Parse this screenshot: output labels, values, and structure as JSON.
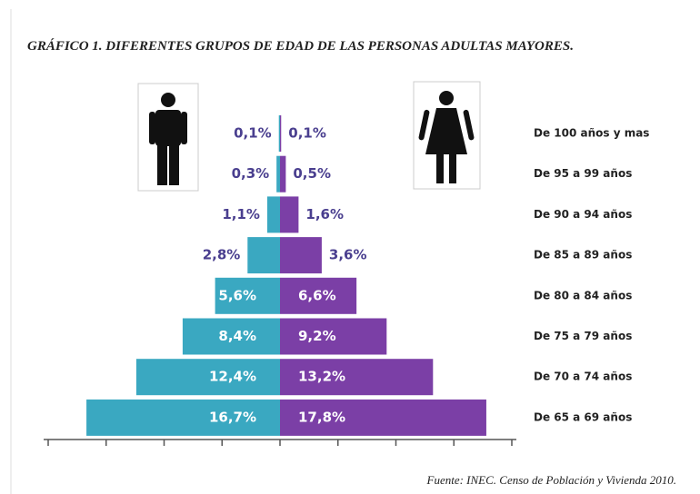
{
  "chart_data": {
    "type": "pyramid",
    "title": "GRÁFICO 1. DIFERENTES GRUPOS DE EDAD DE LAS PERSONAS ADULTAS MAYORES.",
    "categories": [
      "De 100 años y mas",
      "De 95 a 99 años",
      "De 90 a 94 años",
      "De 85 a 89 años",
      "De 80 a 84 años",
      "De 75 a 79 años",
      "De 70 a 74 años",
      "De 65 a 69 años"
    ],
    "series": [
      {
        "color": "#3aa8c1",
        "side": "left",
        "values": [
          0.1,
          0.3,
          1.1,
          2.8,
          5.6,
          8.4,
          12.4,
          16.7
        ],
        "value_labels": [
          "0,1%",
          "0,3%",
          "1,1%",
          "2,8%",
          "5,6%",
          "8,4%",
          "12,4%",
          "16,7%"
        ]
      },
      {
        "color": "#7b3fa6",
        "side": "right",
        "values": [
          0.1,
          0.5,
          1.6,
          3.6,
          6.6,
          9.2,
          13.2,
          17.8
        ],
        "value_labels": [
          "0,1%",
          "0,5%",
          "1,6%",
          "3,6%",
          "6,6%",
          "9,2%",
          "13,2%",
          "17,8%"
        ]
      }
    ],
    "xlim": [
      -20,
      20
    ],
    "xticks": [
      -20,
      -15,
      -10,
      -5,
      0,
      5,
      10,
      15,
      20
    ],
    "source": "Fuente: INEC. Censo de Población y Vivienda 2010."
  }
}
